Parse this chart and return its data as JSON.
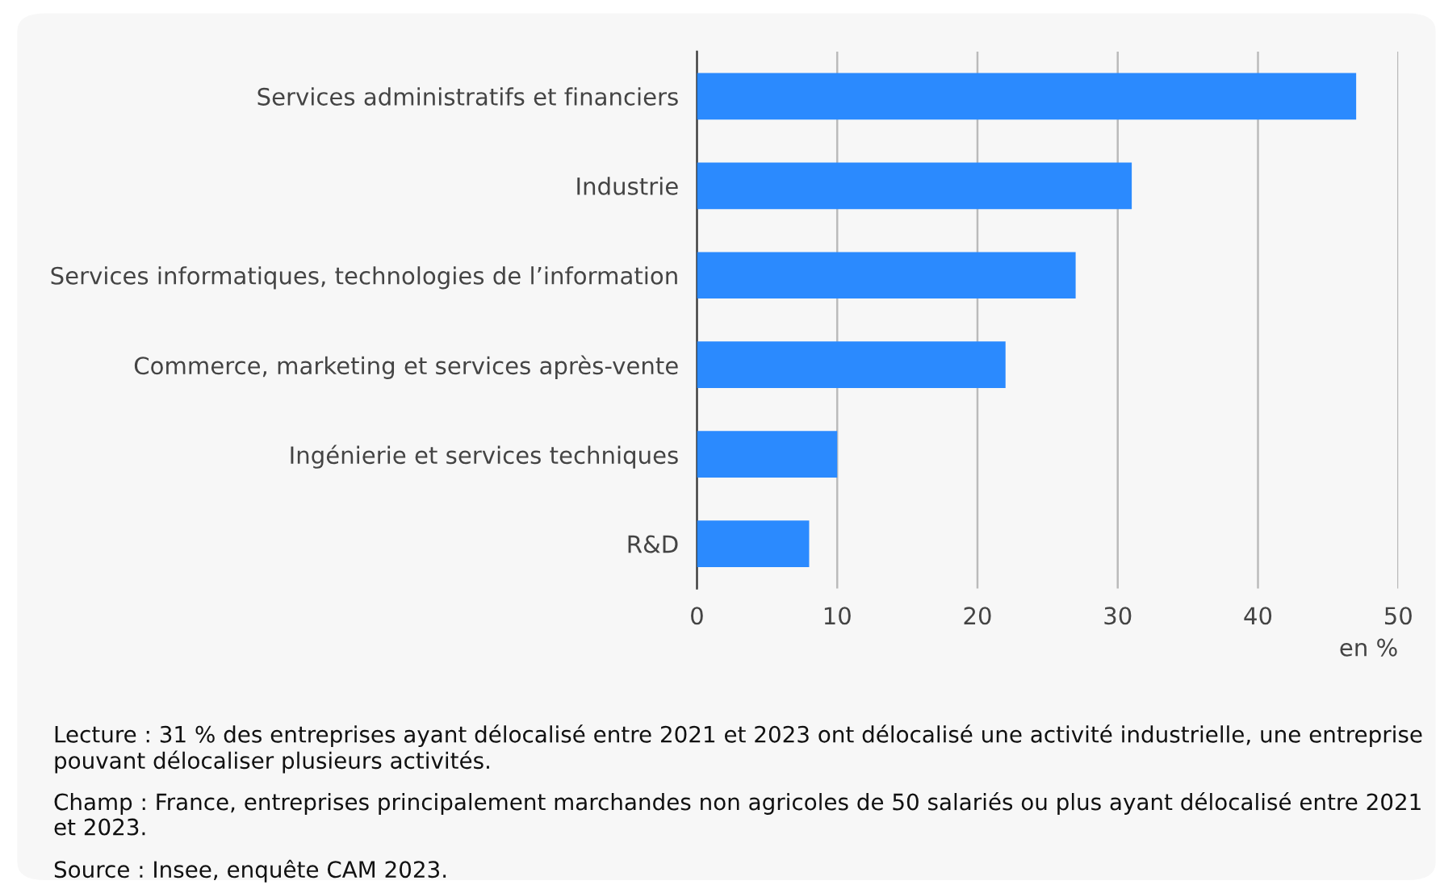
{
  "chart_data": {
    "type": "bar",
    "orientation": "horizontal",
    "categories": [
      "Services administratifs et financiers",
      "Industrie",
      "Services informatiques, technologies de l’information",
      "Commerce, marketing et services après-vente",
      "Ingénierie et services techniques",
      "R&D"
    ],
    "values": [
      47,
      31,
      27,
      22,
      10,
      8
    ],
    "color": "#2b8afe",
    "xlim": [
      0,
      50
    ],
    "xticks": [
      0,
      10,
      20,
      30,
      40,
      50
    ],
    "xlabel": "en %",
    "grid": "x",
    "legend": false,
    "annotations": [
      "Lecture : 31 % des entreprises ayant délocalisé entre 2021 et 2023 ont délocalisé une activité industrielle, une entreprise pouvant délocaliser plusieurs activités.",
      "Champ : France, entreprises principalement marchandes non agricoles de 50 salariés ou plus ayant délocalisé entre 2021 et 2023.",
      "Source : Insee, enquête CAM 2023."
    ]
  }
}
